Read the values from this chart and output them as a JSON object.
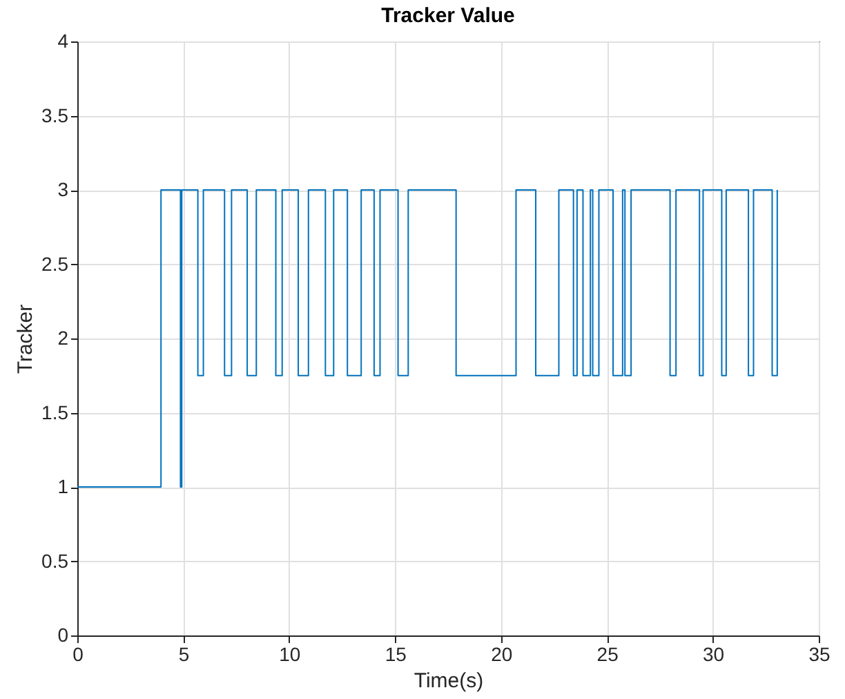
{
  "chart_data": {
    "type": "step",
    "title": "Tracker Value",
    "xlabel": "Time(s)",
    "ylabel": "Tracker",
    "x": [
      0,
      3.95,
      4.87,
      4.93,
      5.69,
      5.95,
      6.95,
      7.28,
      8.02,
      8.45,
      9.37,
      9.67,
      10.43,
      10.91,
      11.71,
      12.1,
      12.75,
      13.4,
      14.01,
      14.29,
      15.14,
      15.62,
      17.88,
      20.71,
      21.64,
      22.73,
      23.42,
      23.59,
      23.87,
      24.22,
      24.33,
      24.62,
      25.29,
      25.74,
      25.85,
      26.14,
      27.98,
      28.26,
      29.37,
      29.54,
      30.42,
      30.63,
      31.68,
      31.92,
      32.8,
      33.04
    ],
    "series": [
      {
        "color": "#0072bd",
        "values": [
          1,
          3,
          1,
          3,
          1.75,
          3,
          1.75,
          3,
          1.75,
          3,
          1.75,
          3,
          1.75,
          3,
          1.75,
          3,
          1.75,
          3,
          1.75,
          3,
          1.75,
          3,
          1.75,
          3,
          1.75,
          3,
          1.75,
          3,
          1.75,
          3,
          1.75,
          3,
          1.75,
          3,
          1.75,
          3,
          1.75,
          3,
          1.75,
          3,
          1.75,
          3,
          1.75,
          3,
          1.75,
          3
        ]
      }
    ],
    "xlim": [
      0,
      35
    ],
    "xticks": [
      0,
      5,
      10,
      15,
      20,
      25,
      30,
      35
    ],
    "ylim": [
      0,
      4
    ],
    "yticks": [
      0,
      0.5,
      1,
      1.5,
      2,
      2.5,
      3,
      3.5,
      4
    ],
    "grid": true,
    "marker": "none",
    "line_style": "solid"
  }
}
